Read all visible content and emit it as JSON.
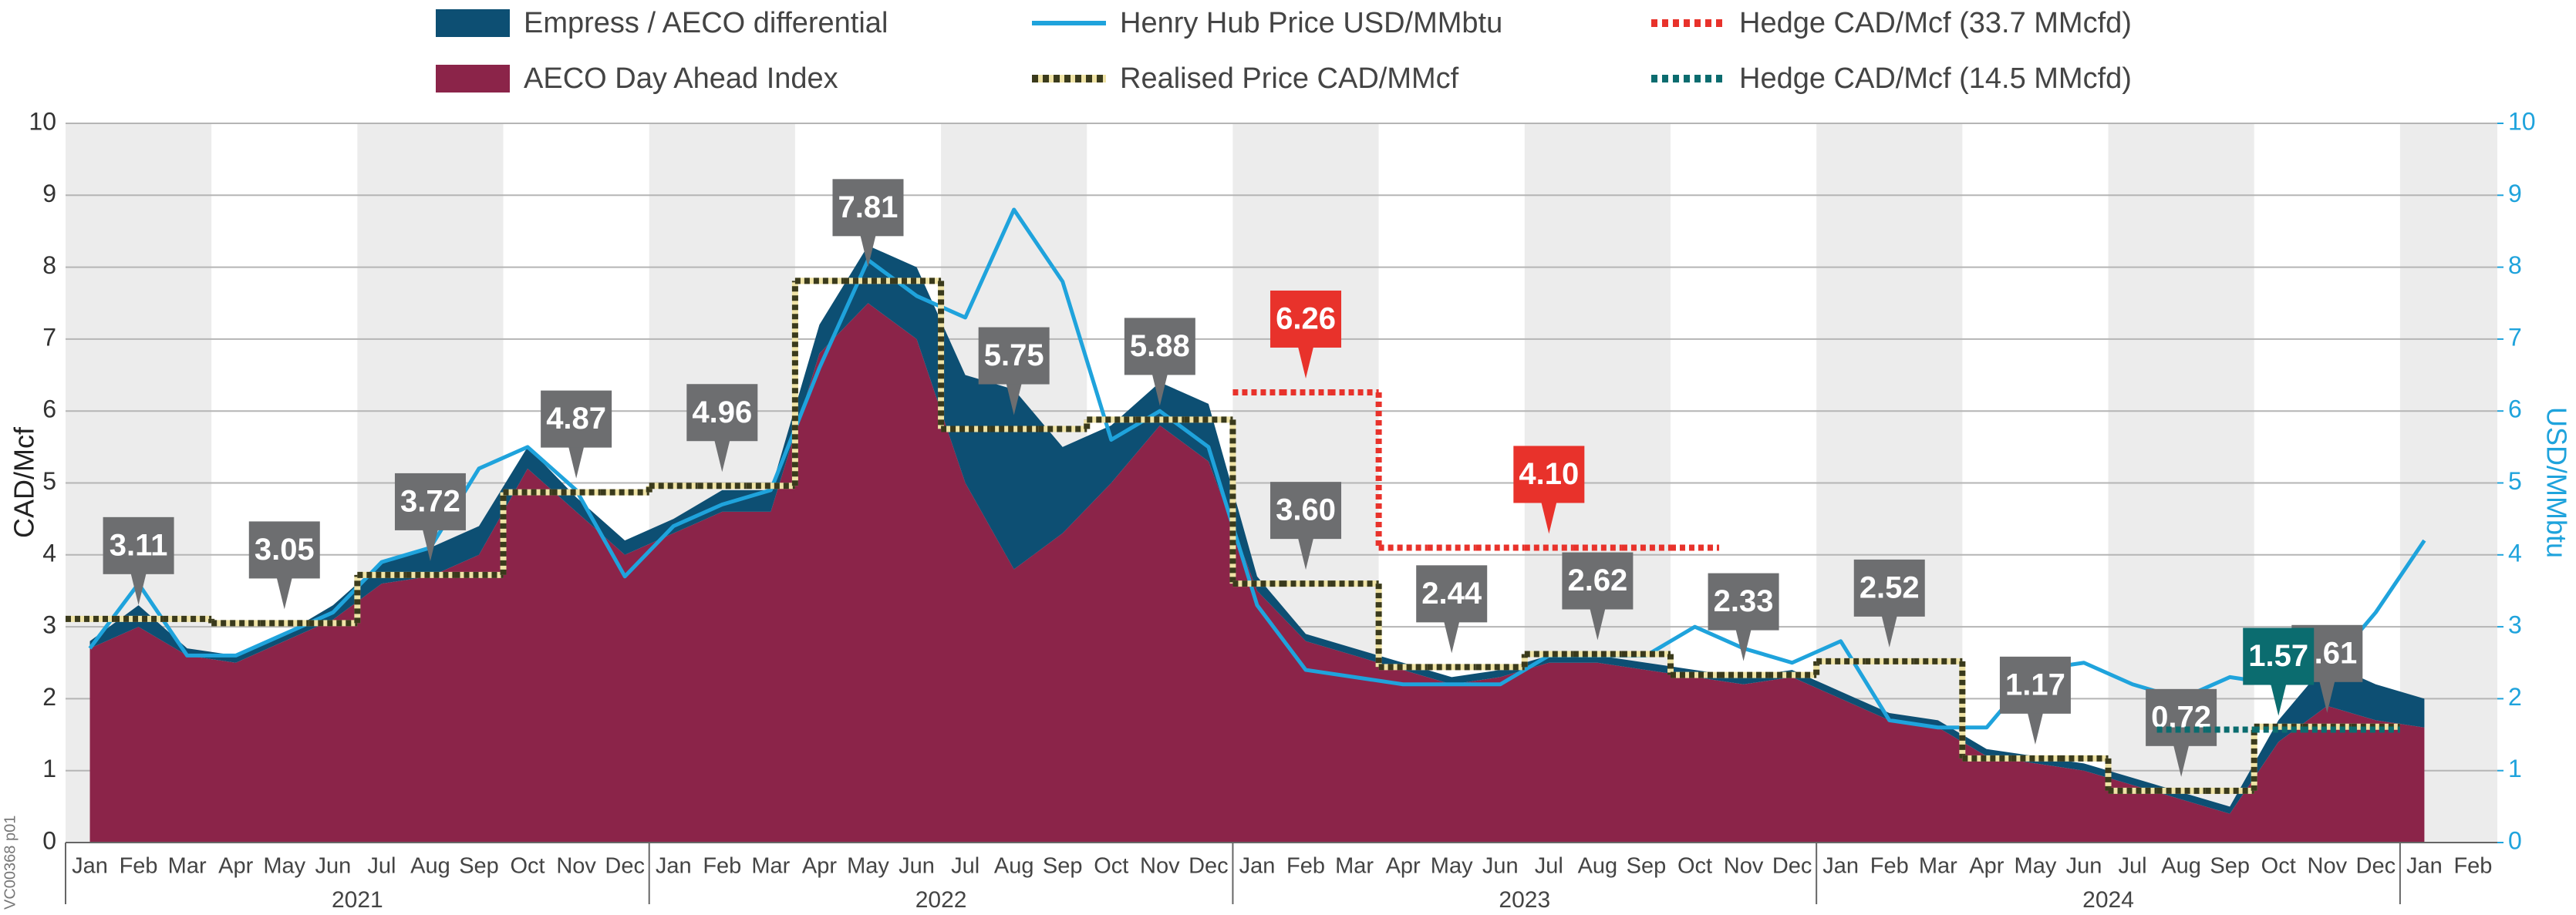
{
  "chart_data": {
    "type": "combo",
    "credit": "VC00368 p01",
    "ylabel": "CAD/Mcf",
    "y2label": "USD/MMbtu",
    "categories": [
      "Jan",
      "Feb",
      "Mar",
      "Apr",
      "May",
      "Jun",
      "Jul",
      "Aug",
      "Sep",
      "Oct",
      "Nov",
      "Dec",
      "Jan",
      "Feb",
      "Mar",
      "Apr",
      "May",
      "Jun",
      "Jul",
      "Aug",
      "Sep",
      "Oct",
      "Nov",
      "Dec",
      "Jan",
      "Feb",
      "Mar",
      "Apr",
      "May",
      "Jun",
      "Jul",
      "Aug",
      "Sep",
      "Oct",
      "Nov",
      "Dec",
      "Jan",
      "Feb",
      "Mar",
      "Apr",
      "May",
      "Jun",
      "Jul",
      "Aug",
      "Sep",
      "Oct",
      "Nov",
      "Dec",
      "Jan",
      "Feb"
    ],
    "years": [
      "2021",
      "2022",
      "2023",
      "2024"
    ],
    "ylim": [
      0,
      10
    ],
    "yticks": [
      0,
      1,
      2,
      3,
      4,
      5,
      6,
      7,
      8,
      9,
      10
    ],
    "y2lim": [
      0,
      10
    ],
    "y2ticks": [
      0,
      1,
      2,
      3,
      4,
      5,
      6,
      7,
      8,
      9,
      10
    ],
    "grid": true,
    "series": [
      {
        "name": "AECO Day Ahead Index",
        "type": "area",
        "color": "#8b2449",
        "values": [
          2.7,
          3.0,
          2.6,
          2.5,
          2.8,
          3.1,
          3.6,
          3.7,
          4.0,
          5.2,
          4.6,
          4.0,
          4.3,
          4.6,
          4.6,
          6.8,
          7.5,
          7.0,
          5.0,
          3.8,
          4.3,
          5.0,
          5.8,
          5.3,
          3.5,
          2.8,
          2.6,
          2.4,
          2.2,
          2.3,
          2.5,
          2.5,
          2.4,
          2.3,
          2.2,
          2.3,
          2.0,
          1.7,
          1.6,
          1.2,
          1.1,
          1.0,
          0.8,
          0.6,
          0.4,
          1.4,
          1.9,
          1.7,
          1.6,
          null
        ]
      },
      {
        "name": "Empress / AECO differential",
        "type": "area",
        "color": "#0d4f73",
        "values": [
          0.1,
          0.3,
          0.1,
          0.1,
          0.1,
          0.2,
          0.3,
          0.4,
          0.4,
          0.3,
          0.2,
          0.2,
          0.2,
          0.3,
          0.3,
          0.4,
          0.8,
          1.0,
          1.5,
          2.5,
          1.2,
          0.8,
          0.6,
          0.8,
          0.2,
          0.1,
          0.1,
          0.1,
          0.1,
          0.1,
          0.1,
          0.1,
          0.1,
          0.1,
          0.1,
          0.1,
          0.1,
          0.1,
          0.1,
          0.1,
          0.1,
          0.1,
          0.1,
          0.1,
          0.1,
          0.3,
          0.6,
          0.5,
          0.4,
          null
        ]
      },
      {
        "name": "Henry Hub Price USD/MMbtu",
        "type": "line",
        "axis": "y2",
        "color": "#1fa3dc",
        "values": [
          2.7,
          3.6,
          2.6,
          2.6,
          2.9,
          3.2,
          3.9,
          4.1,
          5.2,
          5.5,
          4.9,
          3.7,
          4.4,
          4.7,
          4.9,
          6.6,
          8.1,
          7.6,
          7.3,
          8.8,
          7.8,
          5.6,
          6.0,
          5.5,
          3.3,
          2.4,
          2.3,
          2.2,
          2.2,
          2.2,
          2.6,
          2.6,
          2.6,
          3.0,
          2.7,
          2.5,
          2.8,
          1.7,
          1.6,
          1.6,
          2.4,
          2.5,
          2.2,
          2.0,
          2.3,
          2.2,
          2.4,
          3.2,
          4.2,
          null
        ]
      },
      {
        "name": "Realised Price CAD/MMcf",
        "type": "step",
        "color": "#3a3a1c",
        "callout_color": "#6d6e70",
        "values": [
          3.11,
          3.11,
          3.11,
          3.05,
          3.05,
          3.05,
          3.72,
          3.72,
          3.72,
          4.87,
          4.87,
          4.87,
          4.96,
          4.96,
          4.96,
          7.81,
          7.81,
          7.81,
          5.75,
          5.75,
          5.75,
          5.88,
          5.88,
          5.88,
          3.6,
          3.6,
          3.6,
          2.44,
          2.44,
          2.44,
          2.62,
          2.62,
          2.62,
          2.33,
          2.33,
          2.33,
          2.52,
          2.52,
          2.52,
          1.17,
          1.17,
          1.17,
          0.72,
          0.72,
          0.72,
          1.61,
          1.61,
          1.61,
          null,
          null
        ],
        "value_labels": [
          null,
          "3.11",
          null,
          null,
          "3.05",
          null,
          null,
          "3.72",
          null,
          null,
          "4.87",
          null,
          null,
          "4.96",
          null,
          null,
          "7.81",
          null,
          null,
          "5.75",
          null,
          null,
          "5.88",
          null,
          null,
          "3.60",
          null,
          null,
          "2.44",
          null,
          null,
          "2.62",
          null,
          null,
          "2.33",
          null,
          null,
          "2.52",
          null,
          null,
          "1.17",
          null,
          null,
          "0.72",
          null,
          null,
          "1.61",
          null,
          null,
          null
        ]
      },
      {
        "name": "Hedge CAD/Mcf (33.7 MMcfd)",
        "type": "step",
        "color": "#e8322b",
        "callout_color": "#e8322b",
        "values": [
          null,
          null,
          null,
          null,
          null,
          null,
          null,
          null,
          null,
          null,
          null,
          null,
          null,
          null,
          null,
          null,
          null,
          null,
          null,
          null,
          null,
          null,
          null,
          null,
          6.26,
          6.26,
          6.26,
          4.1,
          4.1,
          4.1,
          4.1,
          4.1,
          4.1,
          4.1,
          null,
          null,
          null,
          null,
          null,
          null,
          null,
          null,
          null,
          null,
          null,
          null,
          null,
          null,
          null,
          null
        ],
        "value_labels": [
          null,
          null,
          null,
          null,
          null,
          null,
          null,
          null,
          null,
          null,
          null,
          null,
          null,
          null,
          null,
          null,
          null,
          null,
          null,
          null,
          null,
          null,
          null,
          null,
          null,
          "6.26",
          null,
          null,
          null,
          null,
          "4.10",
          null,
          null,
          null,
          null,
          null,
          null,
          null,
          null,
          null,
          null,
          null,
          null,
          null,
          null,
          null,
          null,
          null,
          null,
          null
        ]
      },
      {
        "name": "Hedge CAD/Mcf (14.5 MMcfd)",
        "type": "step",
        "color": "#0b6c6f",
        "callout_color": "#0b6c6f",
        "values": [
          null,
          null,
          null,
          null,
          null,
          null,
          null,
          null,
          null,
          null,
          null,
          null,
          null,
          null,
          null,
          null,
          null,
          null,
          null,
          null,
          null,
          null,
          null,
          null,
          null,
          null,
          null,
          null,
          null,
          null,
          null,
          null,
          null,
          null,
          null,
          null,
          null,
          null,
          null,
          null,
          null,
          null,
          null,
          1.57,
          1.57,
          1.57,
          1.57,
          1.57,
          null,
          null
        ],
        "value_labels": [
          null,
          null,
          null,
          null,
          null,
          null,
          null,
          null,
          null,
          null,
          null,
          null,
          null,
          null,
          null,
          null,
          null,
          null,
          null,
          null,
          null,
          null,
          null,
          null,
          null,
          null,
          null,
          null,
          null,
          null,
          null,
          null,
          null,
          null,
          null,
          null,
          null,
          null,
          null,
          null,
          null,
          null,
          null,
          null,
          null,
          "1.57",
          null,
          null,
          null,
          null
        ]
      }
    ]
  }
}
